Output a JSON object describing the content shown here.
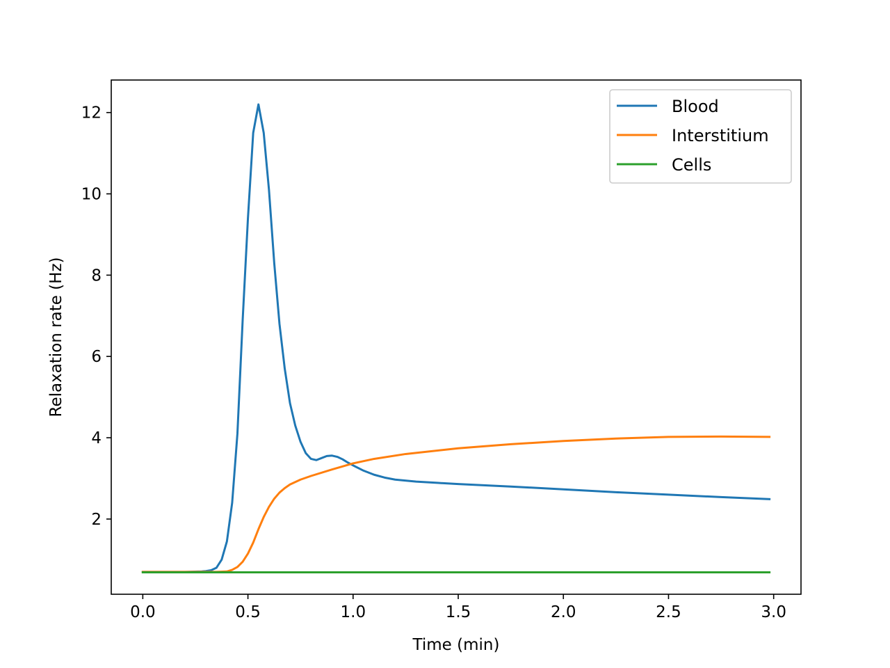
{
  "chart_data": {
    "type": "line",
    "title": "",
    "xlabel": "Time (min)",
    "ylabel": "Relaxation rate (Hz)",
    "xlim": [
      -0.15,
      3.13
    ],
    "ylim": [
      0.15,
      12.8
    ],
    "x_ticks": [
      0.0,
      0.5,
      1.0,
      1.5,
      2.0,
      2.5,
      3.0
    ],
    "x_tick_labels": [
      "0.0",
      "0.5",
      "1.0",
      "1.5",
      "2.0",
      "2.5",
      "3.0"
    ],
    "y_ticks": [
      2,
      4,
      6,
      8,
      10,
      12
    ],
    "y_tick_labels": [
      "2",
      "4",
      "6",
      "8",
      "10",
      "12"
    ],
    "grid": false,
    "legend_position": "top-right",
    "series": [
      {
        "name": "Blood",
        "color": "#1f77b4",
        "x": [
          0.0,
          0.1,
          0.2,
          0.28,
          0.3,
          0.325,
          0.35,
          0.375,
          0.4,
          0.425,
          0.45,
          0.475,
          0.5,
          0.525,
          0.55,
          0.575,
          0.6,
          0.625,
          0.65,
          0.675,
          0.7,
          0.725,
          0.75,
          0.775,
          0.8,
          0.825,
          0.85,
          0.875,
          0.9,
          0.925,
          0.95,
          0.975,
          1.0,
          1.05,
          1.1,
          1.15,
          1.2,
          1.3,
          1.4,
          1.5,
          1.75,
          2.0,
          2.25,
          2.5,
          2.75,
          2.98
        ],
        "y": [
          0.7,
          0.7,
          0.7,
          0.71,
          0.72,
          0.74,
          0.8,
          1.0,
          1.45,
          2.4,
          4.1,
          6.9,
          9.4,
          11.5,
          12.2,
          11.5,
          10.1,
          8.3,
          6.8,
          5.7,
          4.85,
          4.3,
          3.9,
          3.62,
          3.48,
          3.45,
          3.5,
          3.55,
          3.56,
          3.53,
          3.47,
          3.39,
          3.32,
          3.19,
          3.09,
          3.02,
          2.97,
          2.92,
          2.89,
          2.86,
          2.8,
          2.73,
          2.66,
          2.6,
          2.54,
          2.49
        ]
      },
      {
        "name": "Interstitium",
        "color": "#ff7f0e",
        "x": [
          0.0,
          0.1,
          0.2,
          0.3,
          0.35,
          0.4,
          0.425,
          0.45,
          0.475,
          0.5,
          0.525,
          0.55,
          0.575,
          0.6,
          0.625,
          0.65,
          0.675,
          0.7,
          0.75,
          0.8,
          0.9,
          1.0,
          1.1,
          1.25,
          1.5,
          1.75,
          2.0,
          2.25,
          2.5,
          2.75,
          2.98
        ],
        "y": [
          0.7,
          0.7,
          0.7,
          0.7,
          0.7,
          0.71,
          0.75,
          0.82,
          0.95,
          1.15,
          1.42,
          1.75,
          2.05,
          2.3,
          2.5,
          2.65,
          2.76,
          2.85,
          2.97,
          3.06,
          3.22,
          3.37,
          3.48,
          3.6,
          3.74,
          3.84,
          3.92,
          3.98,
          4.02,
          4.03,
          4.02
        ]
      },
      {
        "name": "Cells",
        "color": "#2ca02c",
        "x": [
          0.0,
          1.0,
          2.0,
          2.98
        ],
        "y": [
          0.69,
          0.69,
          0.69,
          0.69
        ]
      }
    ]
  }
}
